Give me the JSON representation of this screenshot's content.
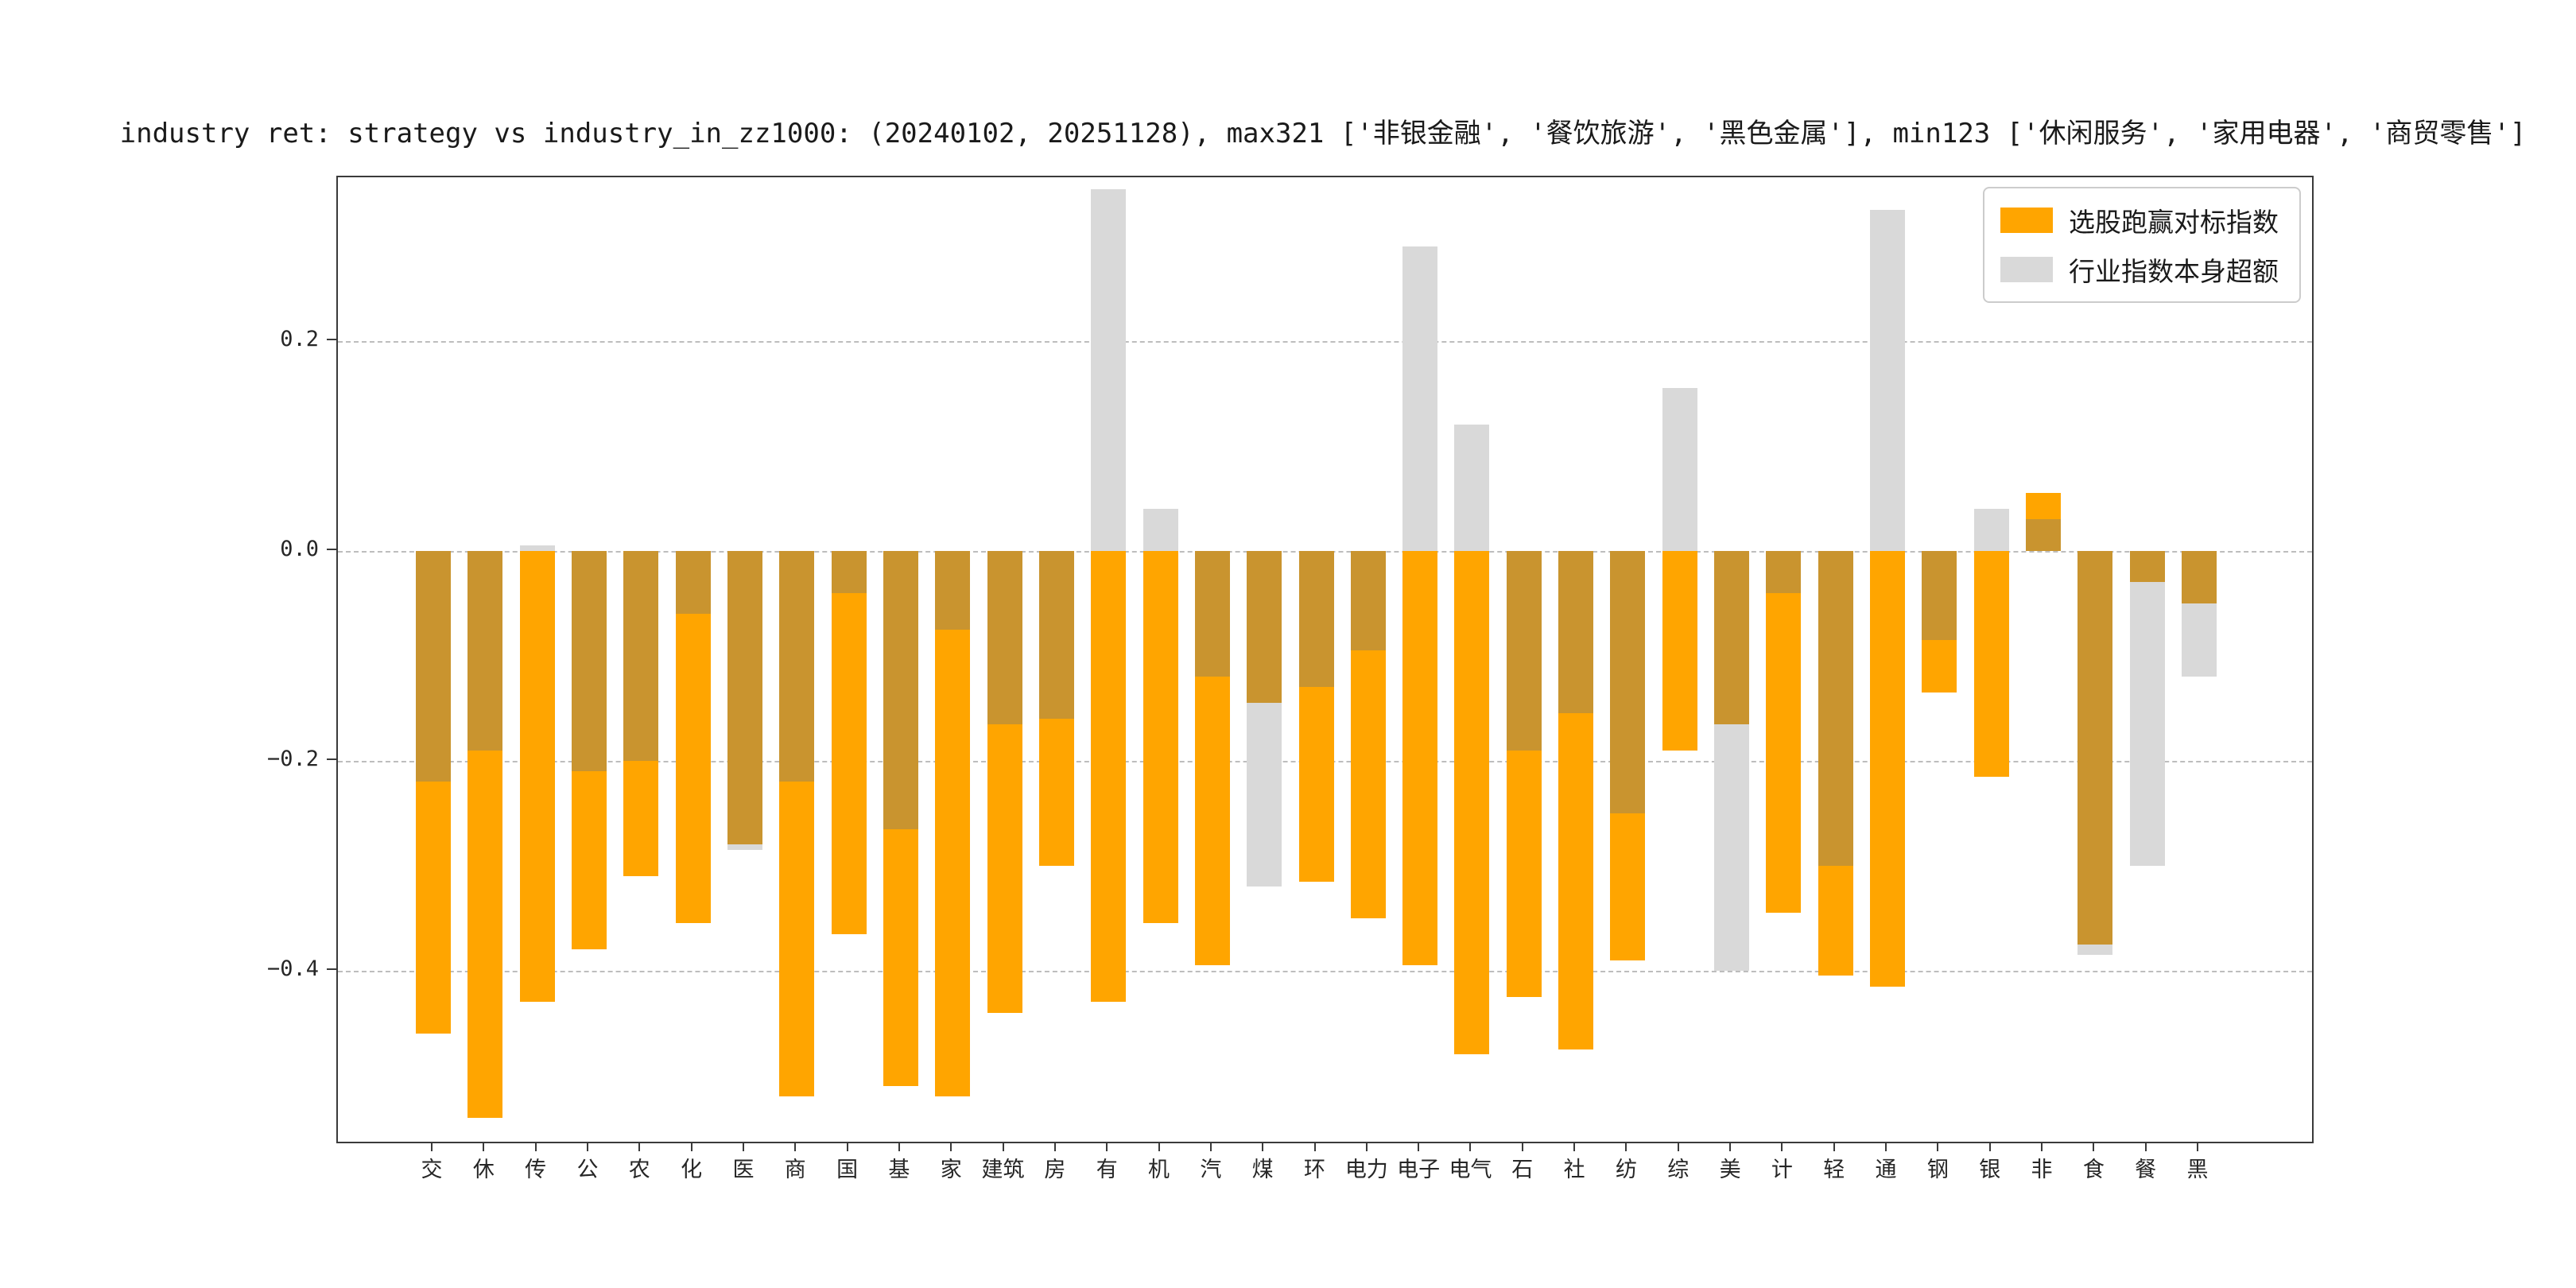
{
  "figure": {
    "title": "industry ret: strategy vs industry_in_zz1000: (20240102, 20251128), max321 ['非银金融', '餐饮旅游', '黑色金属'], min123 ['休闲服务', '家用电器', '商贸零售']",
    "background": "#ffffff"
  },
  "legend": {
    "entries": [
      {
        "label": "选股跑赢对标指数",
        "color": "#FFA500"
      },
      {
        "label": "行业指数本身超额",
        "color": "#D9D9D9"
      }
    ]
  },
  "chart_data": {
    "type": "bar",
    "title": "industry ret: strategy vs industry_in_zz1000: (20240102, 20251128), max321 ['非银金融', '餐饮旅游', '黑色金属'], min123 ['休闲服务', '家用电器', '商贸零售']",
    "categories": [
      "交",
      "休",
      "传",
      "公",
      "农",
      "化",
      "医",
      "商",
      "国",
      "基",
      "家",
      "建筑",
      "房",
      "有",
      "机",
      "汽",
      "煤",
      "环",
      "电力",
      "电子",
      "电气",
      "石",
      "社",
      "纺",
      "综",
      "美",
      "计",
      "轻",
      "通",
      "钢",
      "银",
      "非",
      "食",
      "餐",
      "黑"
    ],
    "series": [
      {
        "name": "选股跑赢对标指数",
        "color": "#FFA500",
        "values": [
          -0.46,
          -0.54,
          -0.43,
          -0.38,
          -0.31,
          -0.355,
          -0.28,
          -0.52,
          -0.365,
          -0.51,
          -0.52,
          -0.44,
          -0.3,
          -0.43,
          -0.355,
          -0.395,
          -0.145,
          -0.315,
          -0.35,
          -0.395,
          -0.48,
          -0.425,
          -0.475,
          -0.39,
          -0.19,
          -0.165,
          -0.345,
          -0.405,
          -0.415,
          -0.135,
          -0.215,
          0.055,
          -0.375,
          -0.03,
          -0.05
        ]
      },
      {
        "name": "行业指数本身超额",
        "color": "#D9D9D9",
        "values": [
          -0.22,
          -0.19,
          0.005,
          -0.21,
          -0.2,
          -0.06,
          -0.285,
          -0.22,
          -0.04,
          -0.265,
          -0.075,
          -0.165,
          -0.16,
          0.345,
          0.04,
          -0.12,
          -0.32,
          -0.13,
          -0.095,
          0.29,
          0.12,
          -0.19,
          -0.155,
          -0.25,
          0.155,
          -0.4,
          -0.04,
          -0.3,
          0.325,
          -0.085,
          0.04,
          0.03,
          -0.385,
          -0.3,
          -0.12
        ]
      }
    ],
    "overlap_color": "#C9942F",
    "yticks": [
      0.2,
      0.0,
      -0.2,
      -0.4
    ],
    "ytick_labels": [
      "0.2",
      "0.0",
      "−0.2",
      "−0.4"
    ],
    "ylim": [
      -0.563,
      0.356
    ],
    "grid": "dashed-horizontal",
    "legend_position": "upper-right"
  }
}
